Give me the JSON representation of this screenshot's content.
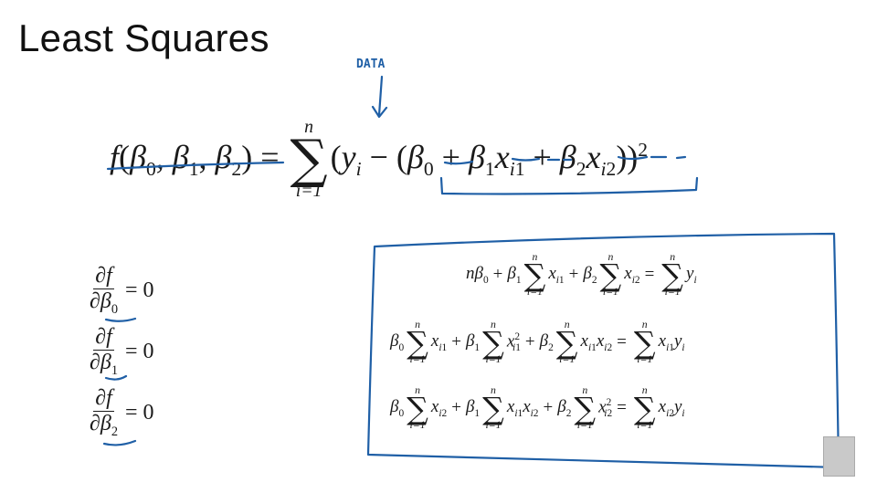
{
  "title": "Least Squares",
  "annotation": "DATA",
  "main_equation": {
    "lhs": "f(β0, β1, β2) =",
    "sum_upper": "n",
    "sum_lower": "i=1",
    "body": "(yi − (β0 + β1xi1 + β2xi2))2"
  },
  "derivatives": [
    {
      "numerator": "∂f",
      "denominator": "∂β0",
      "rhs": "= 0"
    },
    {
      "numerator": "∂f",
      "denominator": "∂β1",
      "rhs": "= 0"
    },
    {
      "numerator": "∂f",
      "denominator": "∂β2",
      "rhs": "= 0"
    }
  ],
  "normal_equations": [
    "nβ0 + β1 Σ xi1 + β2 Σ xi2 = Σ yi",
    "β0 Σ xi1 + β1 Σ xi1² + β2 Σ xi1xi2 = Σ xi1yi",
    "β0 Σ xi2 + β1 Σ xi1xi2 + β2 Σ xi2² = Σ xi2yi"
  ],
  "sum_limits": {
    "upper": "n",
    "lower": "i=1"
  },
  "ink_color": "#1f5fa6"
}
